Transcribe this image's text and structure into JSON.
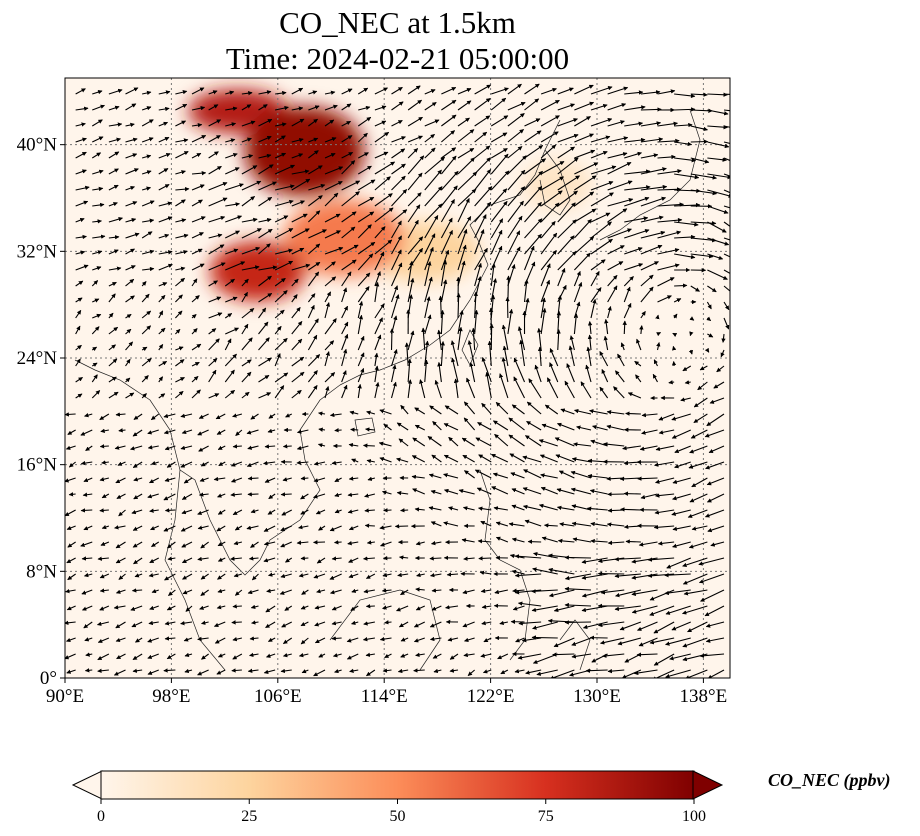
{
  "title": {
    "line1": "CO_NEC at 1.5km",
    "line2": "Time: 2024-02-21 05:00:00"
  },
  "colors": {
    "low": "#fff5eb",
    "mid": "#fdae6b",
    "high": "#d94801",
    "max": "#7f0000"
  },
  "map": {
    "lon_range": [
      90,
      140
    ],
    "lat_range": [
      0,
      45
    ],
    "lon_ticks": [
      {
        "value": 90,
        "label": "90°E"
      },
      {
        "value": 98,
        "label": "98°E"
      },
      {
        "value": 106,
        "label": "106°E"
      },
      {
        "value": 114,
        "label": "114°E"
      },
      {
        "value": 122,
        "label": "122°E"
      },
      {
        "value": 130,
        "label": "130°E"
      },
      {
        "value": 138,
        "label": "138°E"
      }
    ],
    "lat_ticks": [
      {
        "value": 0,
        "label": "0°"
      },
      {
        "value": 8,
        "label": "8°N"
      },
      {
        "value": 16,
        "label": "16°N"
      },
      {
        "value": 24,
        "label": "24°N"
      },
      {
        "value": 32,
        "label": "32°N"
      },
      {
        "value": 40,
        "label": "40°N"
      }
    ],
    "plumes": [
      {
        "name": "north-china-core",
        "lon": 108,
        "lat": 39.5,
        "value": 95
      },
      {
        "name": "inner-mongolia",
        "lon": 103,
        "lat": 42.5,
        "value": 85
      },
      {
        "name": "sichuan-basin",
        "lon": 104.5,
        "lat": 30.5,
        "value": 80
      },
      {
        "name": "central-china",
        "lon": 111,
        "lat": 33,
        "value": 55
      },
      {
        "name": "east-china",
        "lon": 117,
        "lat": 32,
        "value": 25
      },
      {
        "name": "korea",
        "lon": 127,
        "lat": 37,
        "value": 12
      }
    ],
    "wind_pattern": "anticyclonic flow over the western Pacific, north-easterlies over the South China Sea"
  },
  "colorbar": {
    "label": "CO_NEC (ppbv)",
    "min": 0,
    "max": 100,
    "ticks": [
      {
        "value": 0,
        "label": "0"
      },
      {
        "value": 25,
        "label": "25"
      },
      {
        "value": 50,
        "label": "50"
      },
      {
        "value": 75,
        "label": "75"
      },
      {
        "value": 100,
        "label": "100"
      }
    ],
    "extend": "both"
  }
}
